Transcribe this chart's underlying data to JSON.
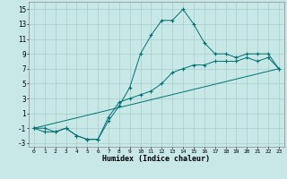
{
  "xlabel": "Humidex (Indice chaleur)",
  "background_color": "#c8e8e8",
  "line_color": "#007070",
  "grid_color": "#a8cccc",
  "xlim": [
    -0.5,
    23.5
  ],
  "ylim": [
    -3.5,
    16.0
  ],
  "xticks": [
    0,
    1,
    2,
    3,
    4,
    5,
    6,
    7,
    8,
    9,
    10,
    11,
    12,
    13,
    14,
    15,
    16,
    17,
    18,
    19,
    20,
    21,
    22,
    23
  ],
  "yticks": [
    -3,
    -1,
    1,
    3,
    5,
    7,
    9,
    11,
    13,
    15
  ],
  "curve1_x": [
    0,
    1,
    2,
    3,
    4,
    5,
    6,
    7,
    8,
    9,
    10,
    11,
    12,
    13,
    14,
    15,
    16,
    17,
    18,
    19,
    20,
    21,
    22,
    23
  ],
  "curve1_y": [
    -1,
    -1.5,
    -1.5,
    -1,
    -2,
    -2.5,
    -2.5,
    0,
    2,
    4.5,
    9,
    11.5,
    13.5,
    13.5,
    15,
    13,
    10.5,
    9,
    9,
    8.5,
    9,
    9,
    9,
    7
  ],
  "curve2_x": [
    0,
    1,
    2,
    3,
    4,
    5,
    6,
    7,
    8,
    9,
    10,
    11,
    12,
    13,
    14,
    15,
    16,
    17,
    18,
    19,
    20,
    21,
    22,
    23
  ],
  "curve2_y": [
    -1,
    -1,
    -1.5,
    -1,
    -2,
    -2.5,
    -2.5,
    0.5,
    2.5,
    3,
    3.5,
    4,
    5,
    6.5,
    7,
    7.5,
    7.5,
    8,
    8,
    8,
    8.5,
    8,
    8.5,
    7
  ],
  "curve3_x": [
    0,
    23
  ],
  "curve3_y": [
    -1,
    7
  ]
}
